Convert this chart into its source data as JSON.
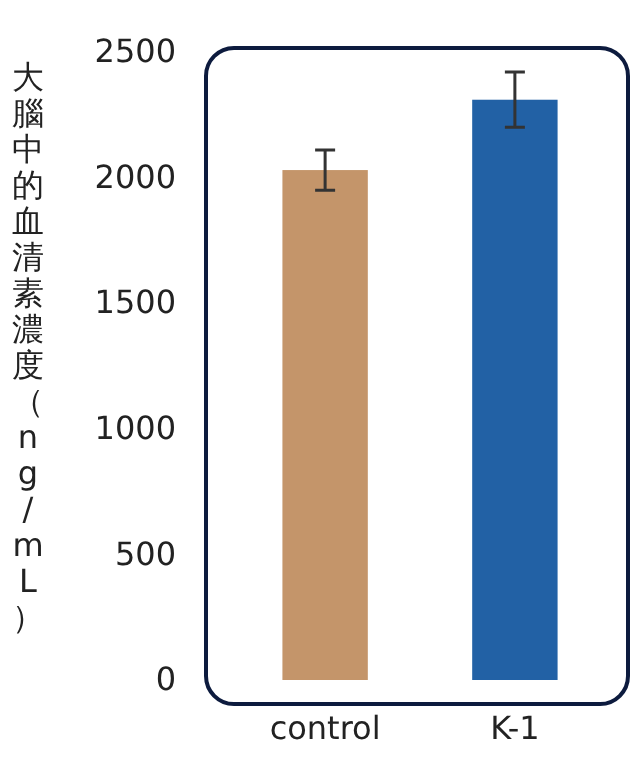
{
  "chart_data": {
    "type": "bar",
    "ylabel": "大腦中的血清素濃度（ng/mL）",
    "categories": [
      "control",
      "K-1"
    ],
    "values": [
      2030,
      2310
    ],
    "errors": [
      80,
      110
    ],
    "colors": [
      "#c4956a",
      "#2261a5"
    ],
    "ylim": [
      0,
      2500
    ],
    "yticks": [
      0,
      500,
      1000,
      1500,
      2000,
      2500
    ],
    "grid": false
  }
}
